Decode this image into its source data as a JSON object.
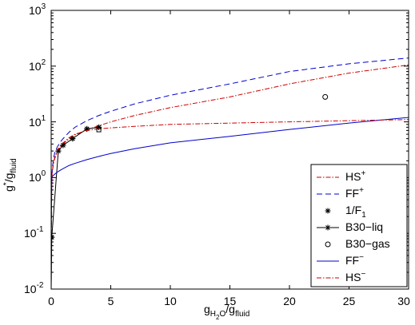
{
  "chart_data": {
    "type": "line",
    "xlabel": {
      "main": "g",
      "sub1": "H",
      "sub2": "2",
      "sub3": "O",
      "slash": "/g",
      "sub4": "fluid"
    },
    "ylabel": {
      "main": "g",
      "sup": "*",
      "slash": "/g",
      "sub": "fluid"
    },
    "xlim": [
      0,
      30
    ],
    "ylim": [
      0.01,
      1000
    ],
    "yscale": "log",
    "xticks": [
      "0",
      "5",
      "10",
      "15",
      "20",
      "25",
      "30"
    ],
    "yticks": [
      {
        "base": "10",
        "exp": "-2"
      },
      {
        "base": "10",
        "exp": "-1"
      },
      {
        "base": "10",
        "exp": "0"
      },
      {
        "base": "10",
        "exp": "1"
      },
      {
        "base": "10",
        "exp": "2"
      },
      {
        "base": "10",
        "exp": "3"
      }
    ],
    "grid": false,
    "legend_position": "lower-right",
    "legend": [
      {
        "text": "HS",
        "sup": "+",
        "sub": ""
      },
      {
        "text": "FF",
        "sup": "+",
        "sub": ""
      },
      {
        "text": "1/F",
        "sup": "",
        "sub": "1"
      },
      {
        "text": "B30−liq",
        "sup": "",
        "sub": ""
      },
      {
        "text": "B30−gas",
        "sup": "",
        "sub": ""
      },
      {
        "text": "FF",
        "sup": "−",
        "sub": ""
      },
      {
        "text": "HS",
        "sup": "−",
        "sub": ""
      }
    ],
    "series": [
      {
        "color": "#cc0000",
        "dash": "6,2,1.5,2",
        "marker": "none",
        "x": [
          0,
          0.01,
          0.05,
          0.1,
          0.2,
          0.3,
          0.5,
          0.75,
          1,
          1.5,
          2,
          3,
          4,
          5,
          7,
          10,
          15,
          20,
          25,
          30
        ],
        "y": [
          0.01,
          0.1,
          0.95,
          1.3,
          1.8,
          2.2,
          2.8,
          3.5,
          4,
          5,
          5.8,
          7.2,
          8.5,
          10,
          13,
          18,
          28,
          48,
          75,
          105
        ]
      },
      {
        "color": "#0000cc",
        "dash": "7,4",
        "marker": "none",
        "x": [
          0,
          0.01,
          0.05,
          0.1,
          0.2,
          0.3,
          0.5,
          0.75,
          1,
          1.5,
          2,
          3,
          4,
          5,
          7,
          10,
          15,
          20,
          25,
          30
        ],
        "y": [
          0.01,
          0.1,
          1,
          1.5,
          2.2,
          2.8,
          3.5,
          4.3,
          5,
          6.5,
          8,
          10.5,
          13,
          15.5,
          21,
          30,
          48,
          80,
          110,
          140
        ]
      },
      {
        "color": "#000000",
        "dash": "none",
        "marker": "star-only",
        "x": [
          0.05,
          0.6,
          1,
          1.8,
          3,
          4
        ],
        "y": [
          0.085,
          3,
          3.8,
          5,
          7.5,
          8
        ]
      },
      {
        "color": "#000000",
        "dash": "none",
        "marker": "star",
        "x": [
          0,
          0.05,
          0.6,
          1,
          1.8,
          3,
          4
        ],
        "y": [
          0.01,
          0.085,
          3,
          3.8,
          5,
          7.5,
          8
        ]
      },
      {
        "color": "#000000",
        "dash": "none",
        "marker": "circle-only",
        "x": [
          23
        ],
        "y": [
          28
        ]
      },
      {
        "color": "#0000cc",
        "dash": "none",
        "marker": "none",
        "x": [
          0,
          0.01,
          0.05,
          0.1,
          0.2,
          0.3,
          0.5,
          0.75,
          1,
          1.5,
          2,
          3,
          4,
          5,
          7,
          10,
          15,
          20,
          25,
          30
        ],
        "y": [
          0.01,
          0.15,
          1,
          1.05,
          1.1,
          1.15,
          1.25,
          1.35,
          1.45,
          1.65,
          1.8,
          2.1,
          2.4,
          2.7,
          3.3,
          4.2,
          5.5,
          7.3,
          9.5,
          12
        ]
      },
      {
        "color": "#cc0000",
        "dash": "6,2,1.5,2",
        "marker": "none",
        "x": [
          0,
          0.01,
          0.05,
          0.1,
          0.2,
          0.3,
          0.5,
          0.75,
          1,
          1.5,
          2,
          3,
          4,
          5,
          7,
          10,
          15,
          20,
          25,
          30
        ],
        "y": [
          0.01,
          0.1,
          1,
          1.3,
          1.9,
          2.3,
          3,
          3.7,
          4.2,
          5.2,
          6,
          7,
          7.5,
          7.8,
          8.3,
          9,
          9.5,
          10,
          10.5,
          11
        ]
      }
    ]
  }
}
